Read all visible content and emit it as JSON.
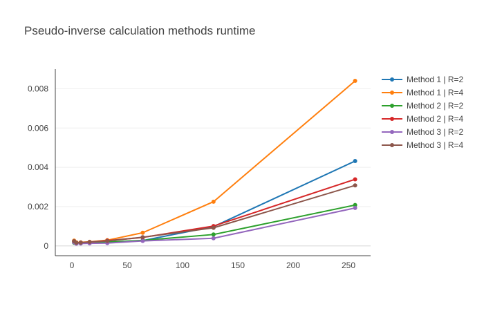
{
  "chart_data": {
    "type": "line",
    "title": "Pseudo-inverse calculation methods runtime",
    "xlabel": "",
    "ylabel": "",
    "xlim": [
      -15,
      270
    ],
    "ylim": [
      -0.0005,
      0.009
    ],
    "x_ticks": [
      0,
      50,
      100,
      150,
      200,
      250
    ],
    "x_tick_labels": [
      "0",
      "50",
      "100",
      "150",
      "200",
      "250"
    ],
    "y_ticks": [
      0,
      0.002,
      0.004,
      0.006,
      0.008
    ],
    "y_tick_labels": [
      "0",
      "0.002",
      "0.004",
      "0.006",
      "0.008"
    ],
    "grid": "horizontal",
    "legend_position": "top-right",
    "x": [
      2,
      4,
      8,
      16,
      32,
      64,
      128,
      256
    ],
    "series": [
      {
        "name": "Method 1 | R=2",
        "color": "#1f77b4",
        "values": [
          0.00025,
          0.00013,
          0.00014,
          0.00017,
          0.0002,
          0.00027,
          0.00098,
          0.00432
        ]
      },
      {
        "name": "Method 1 | R=4",
        "color": "#ff7f0e",
        "values": [
          0.00027,
          0.00018,
          0.00018,
          0.00021,
          0.00029,
          0.00067,
          0.00225,
          0.0084
        ]
      },
      {
        "name": "Method 2 | R=2",
        "color": "#2ca02c",
        "values": [
          0.00016,
          0.00012,
          0.00013,
          0.00015,
          0.0002,
          0.00028,
          0.00058,
          0.00208
        ]
      },
      {
        "name": "Method 2 | R=4",
        "color": "#d62728",
        "values": [
          0.00023,
          0.00015,
          0.00016,
          0.00019,
          0.00027,
          0.00043,
          0.00101,
          0.00339
        ]
      },
      {
        "name": "Method 3 | R=2",
        "color": "#9467bd",
        "values": [
          0.00018,
          0.00011,
          0.00012,
          0.00013,
          0.00014,
          0.00025,
          0.00039,
          0.00193
        ]
      },
      {
        "name": "Method 3 | R=4",
        "color": "#8c564b",
        "values": [
          0.00024,
          0.00016,
          0.00017,
          0.0002,
          0.00025,
          0.00044,
          0.00092,
          0.00308
        ]
      }
    ]
  }
}
